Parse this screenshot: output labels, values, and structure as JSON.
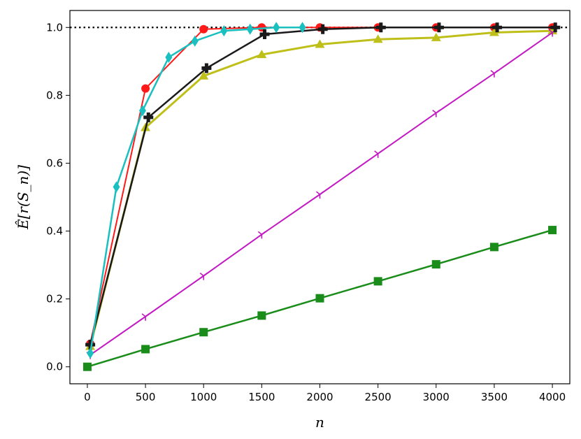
{
  "chart_data": {
    "type": "line",
    "title": "",
    "xlabel": "n",
    "ylabel": "Ê[r(S_n)]",
    "xlim": [
      -150,
      4150
    ],
    "ylim": [
      -0.05,
      1.05
    ],
    "xticks": [
      0,
      500,
      1000,
      1500,
      2000,
      2500,
      3000,
      3500,
      4000
    ],
    "yticks": [
      0.0,
      0.2,
      0.4,
      0.6,
      0.8,
      1.0
    ],
    "xtick_labels": [
      "0",
      "500",
      "1000",
      "1500",
      "2000",
      "2500",
      "3000",
      "3500",
      "4000"
    ],
    "ytick_labels": [
      "0.0",
      "0.2",
      "0.4",
      "0.6",
      "0.8",
      "1.0"
    ],
    "grid": false,
    "reference_line": {
      "y": 1.0,
      "style": "dotted",
      "color": "#000000"
    },
    "series": [
      {
        "color": "#ff1a1a",
        "marker": "circle",
        "stroke_width": 2,
        "x": [
          25,
          500,
          1000,
          1500,
          2000,
          2500,
          3000,
          3500,
          4000
        ],
        "y": [
          0.068,
          0.82,
          0.995,
          1.0,
          1.0,
          1.0,
          1.0,
          1.0,
          1.0
        ]
      },
      {
        "color": "#bfbf1a",
        "marker": "triangle",
        "stroke_width": 3,
        "x": [
          25,
          500,
          1000,
          1500,
          2000,
          2500,
          3000,
          3500,
          4000
        ],
        "y": [
          0.06,
          0.705,
          0.857,
          0.92,
          0.95,
          0.965,
          0.97,
          0.985,
          0.99
        ]
      },
      {
        "color": "#1a8c1a",
        "marker": "square",
        "stroke_width": 2.5,
        "x": [
          0,
          500,
          1000,
          1500,
          2000,
          2500,
          3000,
          3500,
          4000
        ],
        "y": [
          0.0,
          0.052,
          0.102,
          0.151,
          0.202,
          0.252,
          0.302,
          0.353,
          0.403
        ]
      },
      {
        "color": "#c21ac2",
        "marker": "tri_down",
        "stroke_width": 2,
        "x": [
          25,
          500,
          1000,
          1500,
          2000,
          2500,
          3000,
          3500,
          4000
        ],
        "y": [
          0.035,
          0.148,
          0.268,
          0.39,
          0.508,
          0.628,
          0.748,
          0.865,
          0.985
        ]
      },
      {
        "color": "#1a1a1a",
        "marker": "plus",
        "stroke_width": 2.5,
        "x": [
          25,
          525,
          1025,
          1525,
          2025,
          2525,
          3025,
          3525,
          4025
        ],
        "y": [
          0.065,
          0.735,
          0.88,
          0.98,
          0.995,
          1.0,
          1.0,
          1.0,
          1.0
        ]
      },
      {
        "color": "#1abfbf",
        "marker": "diamond",
        "stroke_width": 2.5,
        "x": [
          25,
          250,
          475,
          700,
          925,
          1175,
          1400,
          1625,
          1850
        ],
        "y": [
          0.04,
          0.53,
          0.755,
          0.912,
          0.96,
          0.99,
          0.995,
          1.0,
          1.0
        ]
      }
    ]
  }
}
